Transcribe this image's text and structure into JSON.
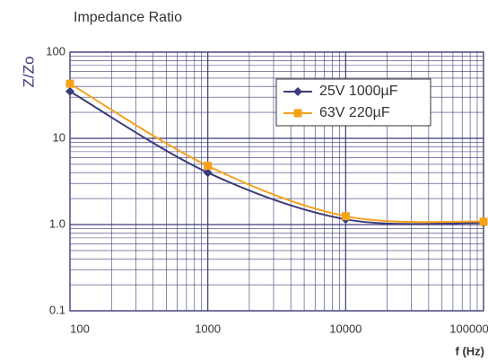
{
  "chart_data": {
    "type": "line",
    "title": "Impedance Ratio",
    "ylabel": "Z/Zo",
    "xlabel": "f (Hz)",
    "x": [
      100,
      1000,
      10000,
      100000
    ],
    "series": [
      {
        "name": "25V 1000µF",
        "color": "#3b3b78",
        "marker": "diamond",
        "values": [
          35,
          4.0,
          1.15,
          1.05
        ]
      },
      {
        "name": "63V 220µF",
        "color": "#f5a21b",
        "marker": "square",
        "values": [
          43,
          4.8,
          1.25,
          1.08
        ]
      }
    ],
    "xlim": [
      100,
      100000
    ],
    "xticks": [
      100,
      1000,
      10000,
      100000
    ],
    "ylim": [
      0.1,
      100
    ],
    "yticks": [
      0.1,
      {
        "value": 1,
        "label": "1.0"
      },
      10,
      100
    ],
    "log_x": true,
    "log_y": true,
    "grid": true,
    "legend": "upper right"
  }
}
